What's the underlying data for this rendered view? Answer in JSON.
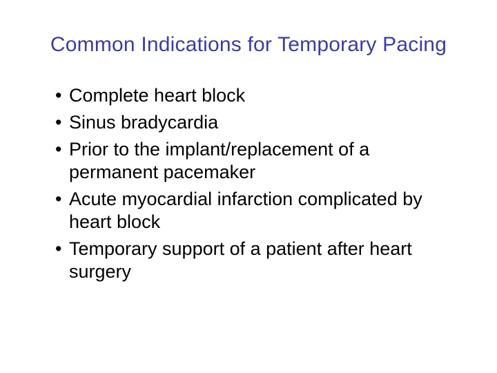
{
  "slide": {
    "title": "Common Indications for Temporary Pacing",
    "title_color": "#3c3ca0",
    "title_fontsize": 30,
    "body_color": "#000000",
    "body_fontsize": 27,
    "background_color": "#ffffff",
    "bullets": [
      "Complete heart block",
      "Sinus bradycardia",
      "Prior to the implant/replacement of a permanent pacemaker",
      "Acute myocardial infarction complicated by heart block",
      "Temporary support of a patient after heart surgery"
    ]
  }
}
